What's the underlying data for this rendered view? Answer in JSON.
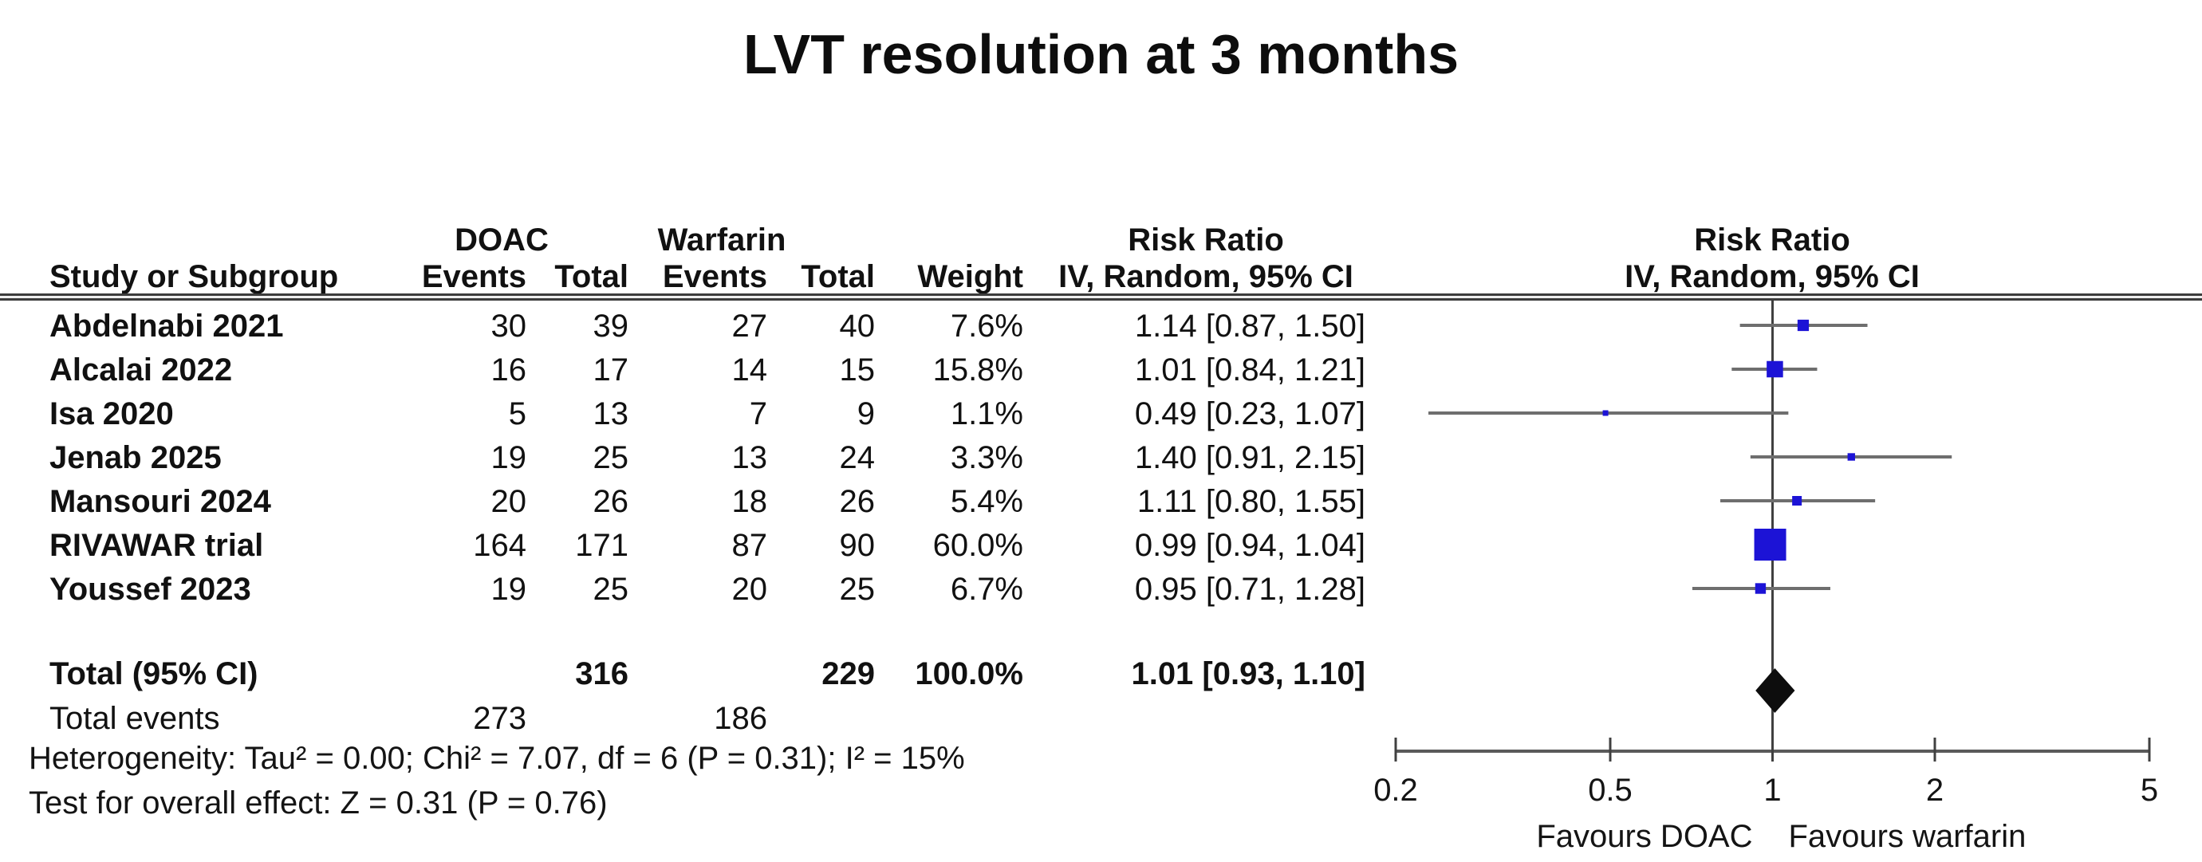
{
  "chart_data": {
    "type": "forest",
    "title": "LVT resolution at 3 months",
    "group_headers": [
      "DOAC",
      "Warfarin"
    ],
    "effect_header": "Risk Ratio",
    "method_header": "IV, Random, 95% CI",
    "columns": {
      "study": "Study or Subgroup",
      "events": "Events",
      "total": "Total",
      "weight": "Weight",
      "ci": "IV, Random, 95% CI"
    },
    "x_axis": {
      "scale": "log",
      "min": 0.2,
      "max": 5,
      "ticks": [
        "0.2",
        "0.5",
        "1",
        "2",
        "5"
      ],
      "favours_left": "Favours DOAC",
      "favours_right": "Favours warfarin"
    },
    "studies": [
      {
        "name": "Abdelnabi 2021",
        "doac_events": "30",
        "doac_total": "39",
        "warf_events": "27",
        "warf_total": "40",
        "weight": 7.6,
        "weight_label": "7.6%",
        "rr": 1.14,
        "ci_low": 0.87,
        "ci_high": 1.5,
        "rr_label": "1.14 [0.87, 1.50]"
      },
      {
        "name": "Alcalai 2022",
        "doac_events": "16",
        "doac_total": "17",
        "warf_events": "14",
        "warf_total": "15",
        "weight": 15.8,
        "weight_label": "15.8%",
        "rr": 1.01,
        "ci_low": 0.84,
        "ci_high": 1.21,
        "rr_label": "1.01 [0.84, 1.21]"
      },
      {
        "name": "Isa 2020",
        "doac_events": "5",
        "doac_total": "13",
        "warf_events": "7",
        "warf_total": "9",
        "weight": 1.1,
        "weight_label": "1.1%",
        "rr": 0.49,
        "ci_low": 0.23,
        "ci_high": 1.07,
        "rr_label": "0.49 [0.23, 1.07]"
      },
      {
        "name": "Jenab 2025",
        "doac_events": "19",
        "doac_total": "25",
        "warf_events": "13",
        "warf_total": "24",
        "weight": 3.3,
        "weight_label": "3.3%",
        "rr": 1.4,
        "ci_low": 0.91,
        "ci_high": 2.15,
        "rr_label": "1.40 [0.91, 2.15]"
      },
      {
        "name": "Mansouri 2024",
        "doac_events": "20",
        "doac_total": "26",
        "warf_events": "18",
        "warf_total": "26",
        "weight": 5.4,
        "weight_label": "5.4%",
        "rr": 1.11,
        "ci_low": 0.8,
        "ci_high": 1.55,
        "rr_label": "1.11 [0.80, 1.55]"
      },
      {
        "name": "RIVAWAR trial",
        "doac_events": "164",
        "doac_total": "171",
        "warf_events": "87",
        "warf_total": "90",
        "weight": 60.0,
        "weight_label": "60.0%",
        "rr": 0.99,
        "ci_low": 0.94,
        "ci_high": 1.04,
        "rr_label": "0.99 [0.94, 1.04]"
      },
      {
        "name": "Youssef 2023",
        "doac_events": "19",
        "doac_total": "25",
        "warf_events": "20",
        "warf_total": "25",
        "weight": 6.7,
        "weight_label": "6.7%",
        "rr": 0.95,
        "ci_low": 0.71,
        "ci_high": 1.28,
        "rr_label": "0.95 [0.71, 1.28]"
      }
    ],
    "total": {
      "label": "Total (95% CI)",
      "doac_total": "316",
      "warf_total": "229",
      "weight_label": "100.0%",
      "rr": 1.01,
      "ci_low": 0.93,
      "ci_high": 1.1,
      "rr_label": "1.01 [0.93, 1.10]"
    },
    "total_events": {
      "label": "Total events",
      "doac": "273",
      "warfarin": "186"
    },
    "footer": {
      "heterogeneity": "Heterogeneity: Tau² = 0.00; Chi² = 7.07, df = 6 (P = 0.31); I² = 15%",
      "overall_effect": "Test for overall effect: Z = 0.31 (P = 0.76)"
    },
    "colors": {
      "marker": "#1c13d6",
      "ci_line": "#6e6e6e",
      "axis": "#5a5a5a",
      "center_line": "#404040",
      "diamond": "#0d0d0d"
    }
  }
}
